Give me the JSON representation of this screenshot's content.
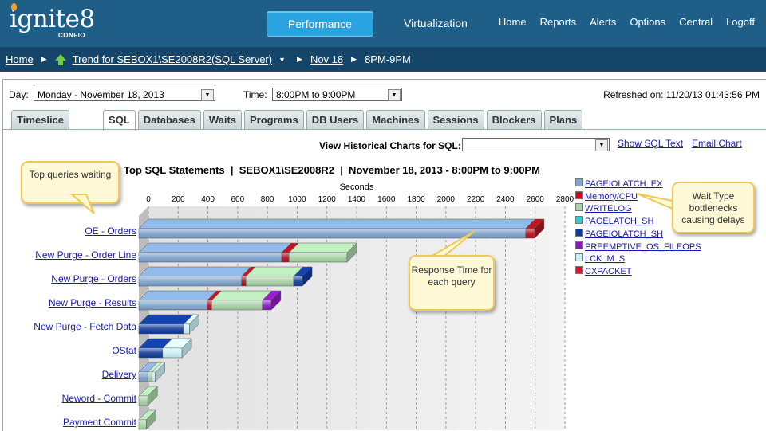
{
  "brand": {
    "word": "ignite8",
    "sub": "CONFIO"
  },
  "topnav": {
    "performance": "Performance",
    "virtualization": "Virtualization",
    "links": [
      "Home",
      "Reports",
      "Alerts",
      "Options",
      "Central",
      "Logoff"
    ]
  },
  "breadcrumb": {
    "home": "Home",
    "trend": "Trend for SEBOX1\\SE2008R2(SQL Server)",
    "date": "Nov 18",
    "hour": "8PM-9PM"
  },
  "controls": {
    "day_label": "Day:",
    "day_value": "Monday - November 18, 2013",
    "time_label": "Time:",
    "time_value": "8:00PM to 9:00PM",
    "refreshed": "Refreshed on: 11/20/13 01:43:56 PM"
  },
  "tabs": [
    "Timeslice",
    "SQL",
    "Databases",
    "Waits",
    "Programs",
    "DB Users",
    "Machines",
    "Sessions",
    "Blockers",
    "Plans"
  ],
  "active_tab": "SQL",
  "historical": {
    "label": "View Historical Charts for SQL:",
    "show_sql": "Show SQL Text",
    "email_chart": "Email Chart"
  },
  "callouts": {
    "top_queries": "Top queries waiting",
    "response": "Response Time for each query",
    "wait_type": "Wait Type bottlenecks causing delays"
  },
  "chart_data": {
    "type": "bar",
    "title": "Top SQL Statements  |  SEBOX1\\SE2008R2  |  November 18, 2013 - 8:00PM to 9:00PM",
    "xlabel": "Seconds",
    "xlim": [
      0,
      2800
    ],
    "ticks": [
      0,
      200,
      400,
      600,
      800,
      1000,
      1200,
      1400,
      1600,
      1800,
      2000,
      2200,
      2400,
      2600,
      2800
    ],
    "categories": [
      "OE - Orders",
      "New Purge - Order Line",
      "New Purge - Orders",
      "New Purge - Results",
      "New Purge - Fetch Data",
      "OStat",
      "Delivery",
      "Neword - Commit",
      "Payment Commit"
    ],
    "series": [
      {
        "name": "PAGEIOLATCH_EX",
        "color": "#7fa3cc",
        "values": [
          2600,
          960,
          690,
          460,
          0,
          0,
          60,
          0,
          0
        ]
      },
      {
        "name": "Memory/CPU",
        "color": "#b01020",
        "values": [
          60,
          50,
          30,
          30,
          0,
          0,
          0,
          0,
          0
        ]
      },
      {
        "name": "WRITELOG",
        "color": "#a8d2a8",
        "values": [
          0,
          390,
          320,
          340,
          0,
          0,
          30,
          60,
          50
        ]
      },
      {
        "name": "PAGELATCH_SH",
        "color": "#3cc8c8",
        "values": [
          0,
          0,
          0,
          0,
          0,
          0,
          0,
          0,
          0
        ]
      },
      {
        "name": "PAGEIOLATCH_SH",
        "color": "#103a9a",
        "values": [
          0,
          0,
          60,
          0,
          300,
          160,
          0,
          0,
          0
        ]
      },
      {
        "name": "PREEMPTIVE_OS_FILEOPS",
        "color": "#8a18c0",
        "values": [
          0,
          0,
          0,
          60,
          0,
          0,
          0,
          0,
          0
        ]
      },
      {
        "name": "LCK_M_S",
        "color": "#c8f0f4",
        "values": [
          0,
          0,
          0,
          0,
          40,
          130,
          20,
          0,
          0
        ]
      },
      {
        "name": "CXPACKET",
        "color": "#cc1830",
        "values": [
          0,
          0,
          0,
          0,
          0,
          0,
          0,
          0,
          0
        ]
      }
    ]
  }
}
